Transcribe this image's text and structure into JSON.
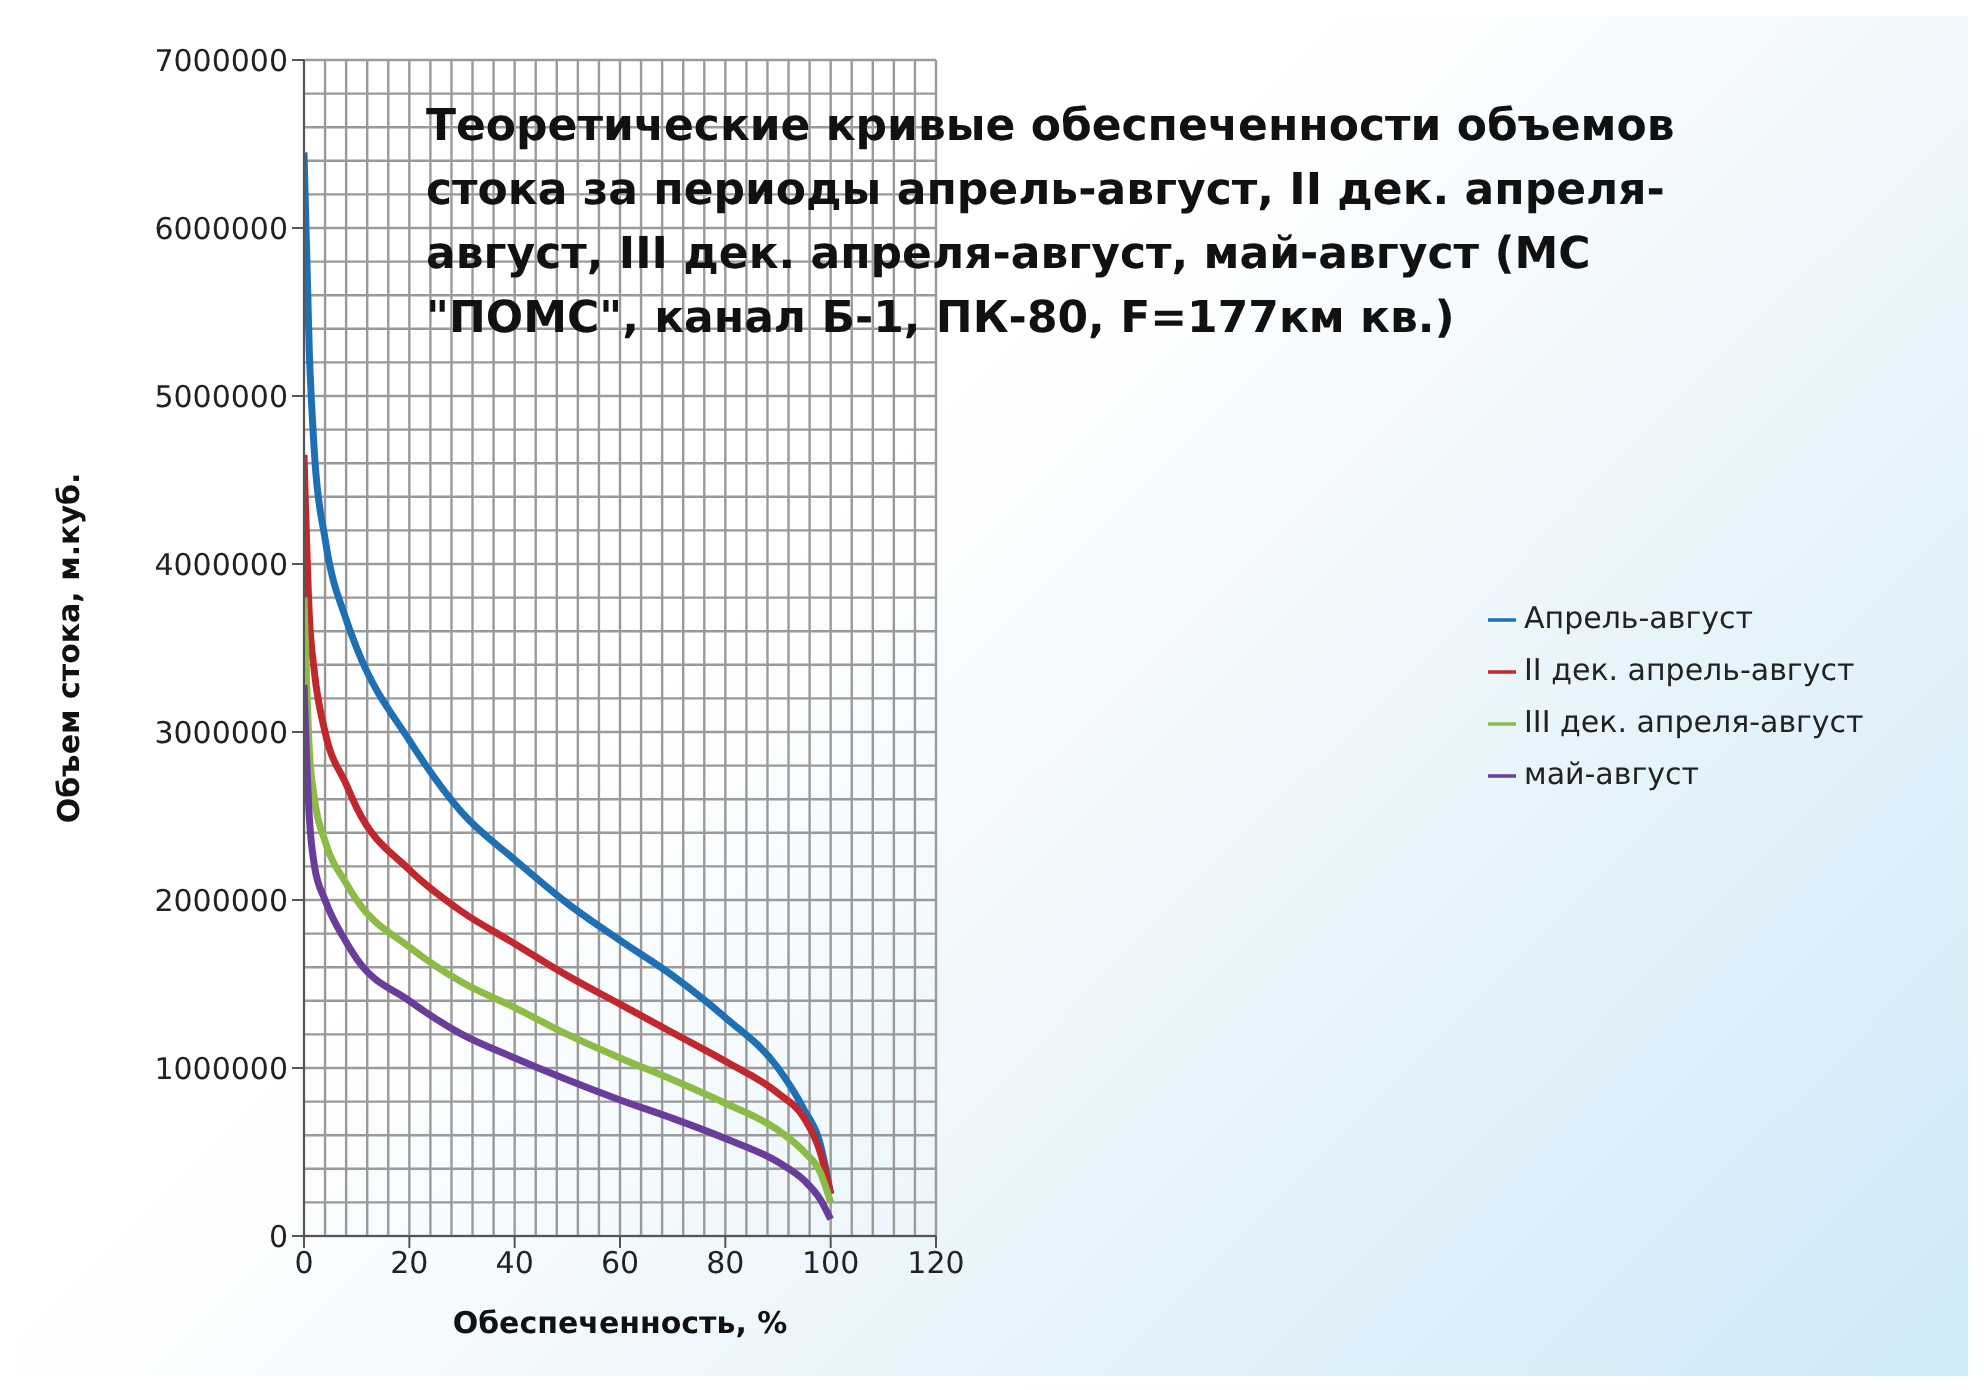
{
  "chart_data": {
    "type": "line",
    "title": "Теоретические кривые обеспеченности объемов стока за периоды апрель-август, II дек. апреля-август, III дек. апреля-август, май-август (МС \"ПОМС\", канал Б-1, ПК-80, F=177км кв.)",
    "xlabel": "Обеспеченность, %",
    "ylabel": "Объем стока, м.куб.",
    "x": [
      0,
      1,
      2,
      4,
      8,
      10,
      20,
      30,
      40,
      50,
      60,
      70,
      80,
      90,
      95,
      98,
      100
    ],
    "series": [
      {
        "name": "Апрель-август",
        "color": "#1f6fb4",
        "values": [
          6450000,
          5270000,
          4650000,
          4150000,
          3670000,
          3500000,
          2950000,
          2520000,
          2240000,
          1980000,
          1760000,
          1550000,
          1300000,
          1000000,
          750000,
          550000,
          250000
        ]
      },
      {
        "name": "II дек. апрель-август",
        "color": "#c0282d",
        "values": [
          4650000,
          3700000,
          3350000,
          3000000,
          2690000,
          2550000,
          2180000,
          1930000,
          1740000,
          1550000,
          1380000,
          1210000,
          1040000,
          850000,
          700000,
          500000,
          250000
        ]
      },
      {
        "name": "III дек. апреля-август",
        "color": "#8dbb47",
        "values": [
          3800000,
          2900000,
          2600000,
          2350000,
          2100000,
          2000000,
          1720000,
          1510000,
          1360000,
          1200000,
          1060000,
          930000,
          790000,
          630000,
          500000,
          380000,
          200000
        ]
      },
      {
        "name": "май-август",
        "color": "#6a3d9a",
        "values": [
          3280000,
          2500000,
          2200000,
          2000000,
          1750000,
          1650000,
          1400000,
          1200000,
          1060000,
          930000,
          810000,
          700000,
          580000,
          440000,
          330000,
          220000,
          100000
        ]
      }
    ],
    "xlim": [
      0,
      120
    ],
    "xticks": [
      0,
      20,
      40,
      60,
      80,
      100,
      120
    ],
    "ylim": [
      0,
      7000000
    ],
    "yticks": [
      0,
      1000000,
      2000000,
      3000000,
      4000000,
      5000000,
      6000000,
      7000000
    ],
    "grid": true,
    "legend": "right",
    "marker": "none",
    "line_style": "solid"
  }
}
